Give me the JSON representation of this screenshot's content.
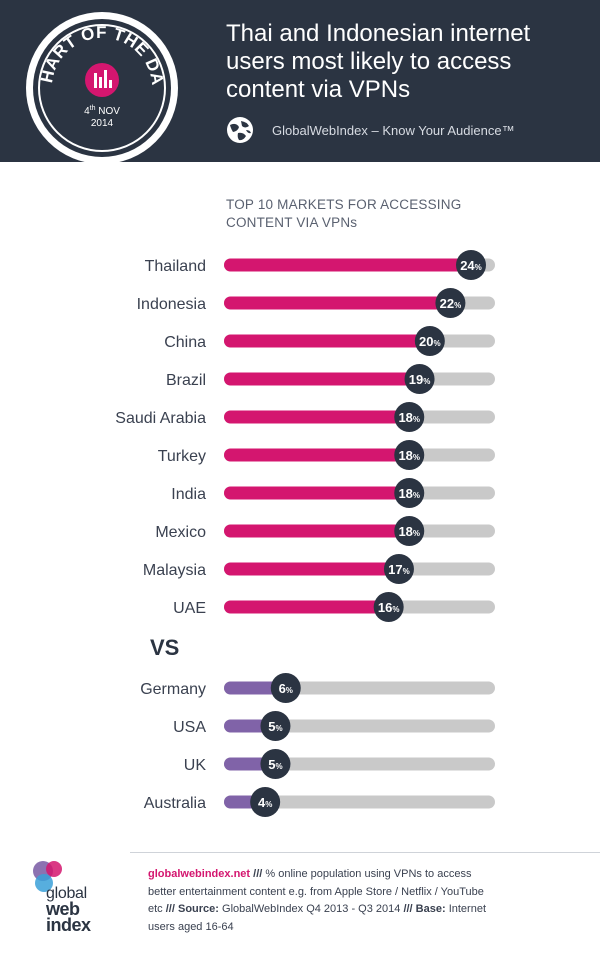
{
  "header": {
    "title_lines": [
      "Thai and Indonesian internet",
      "users most likely to access",
      "content via VPNs"
    ],
    "brand": "GlobalWebIndex – Know Your Audience™",
    "badge": {
      "text": "CHART OF THE DAY",
      "date_day": "4",
      "date_sup": "th",
      "date_month": "NOV",
      "date_year": "2014"
    }
  },
  "subtitle_lines": [
    "TOP 10 MARKETS FOR ACCESSING",
    "CONTENT VIA VPNs"
  ],
  "vs_label": "VS",
  "colors": {
    "top": "#d4166f",
    "vs": "#8063a8",
    "track": "#c9c9c9",
    "bubble": "#2b3442",
    "header": "#2b3442"
  },
  "chart_data": [
    {
      "type": "bar",
      "orientation": "horizontal",
      "categories": [
        "Thailand",
        "Indonesia",
        "China",
        "Brazil",
        "Saudi Arabia",
        "Turkey",
        "India",
        "Mexico",
        "Malaysia",
        "UAE"
      ],
      "values": [
        24,
        22,
        20,
        19,
        18,
        18,
        18,
        18,
        17,
        16
      ],
      "unit": "%",
      "title": "TOP 10 MARKETS FOR ACCESSING CONTENT VIA VPNs",
      "xlim": [
        0,
        24
      ]
    },
    {
      "type": "bar",
      "orientation": "horizontal",
      "categories": [
        "Germany",
        "USA",
        "UK",
        "Australia"
      ],
      "values": [
        6,
        5,
        5,
        4
      ],
      "unit": "%",
      "title": "VS",
      "xlim": [
        0,
        24
      ]
    }
  ],
  "footer": {
    "site": "globalwebindex.net",
    "sep": "///",
    "note": "% online population using VPNs to access better entertainment content e.g. from Apple Store / Netflix / YouTube etc",
    "source_label": "Source:",
    "source": "GlobalWebIndex Q4 2013 - Q3 2014",
    "base_label": "Base:",
    "base": "Internet users aged 16-64",
    "logo_lines": [
      "global",
      "web",
      "index"
    ]
  }
}
